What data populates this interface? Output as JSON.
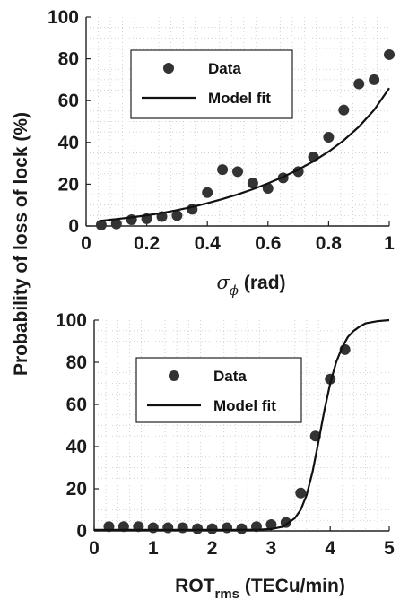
{
  "shared_ylabel": "Probability of loss of lock (%)",
  "colors": {
    "marker": "#333333",
    "line": "#111111",
    "grid": "#c8c8c8",
    "axis": "#222222"
  },
  "chart_data": [
    {
      "type": "scatter",
      "xlabel_symbol": "σ",
      "xlabel_sub": "ϕ",
      "xlabel_unit": " (rad)",
      "xlim": [
        0,
        1
      ],
      "ylim": [
        0,
        100
      ],
      "xticks": [
        "0",
        "0.2",
        "0.4",
        "0.6",
        "0.8",
        "1"
      ],
      "yticks": [
        "0",
        "20",
        "40",
        "60",
        "80",
        "100"
      ],
      "grid": "dotted",
      "legend": {
        "position": "top-left",
        "entries": [
          "Data",
          "Model fit"
        ]
      },
      "series": [
        {
          "name": "Data",
          "kind": "markers",
          "x": [
            0.05,
            0.1,
            0.15,
            0.2,
            0.25,
            0.3,
            0.35,
            0.4,
            0.45,
            0.5,
            0.55,
            0.6,
            0.65,
            0.7,
            0.75,
            0.8,
            0.85,
            0.9,
            0.95,
            1.0
          ],
          "y": [
            0.5,
            1,
            3,
            3.5,
            4.5,
            5,
            8,
            16,
            27,
            26,
            20.5,
            18,
            23,
            26,
            33,
            42.5,
            55.5,
            68,
            70,
            82
          ]
        },
        {
          "name": "Model fit",
          "kind": "line",
          "x": [
            0.05,
            0.1,
            0.15,
            0.2,
            0.25,
            0.3,
            0.35,
            0.4,
            0.45,
            0.5,
            0.55,
            0.6,
            0.65,
            0.7,
            0.75,
            0.8,
            0.85,
            0.9,
            0.95,
            1.0
          ],
          "y": [
            2.5,
            3.3,
            4.1,
            5.1,
            6.2,
            7.6,
            9.1,
            10.9,
            12.9,
            15.1,
            17.6,
            20.4,
            23.5,
            27.0,
            31.0,
            35.6,
            41.0,
            47.5,
            55.5,
            66.0
          ]
        }
      ]
    },
    {
      "type": "scatter",
      "xlabel_main": "ROT",
      "xlabel_sub": "rms",
      "xlabel_unit": " (TECu/min)",
      "xlim": [
        0,
        5
      ],
      "ylim": [
        0,
        100
      ],
      "xticks": [
        "0",
        "1",
        "2",
        "3",
        "4",
        "5"
      ],
      "yticks": [
        "0",
        "20",
        "40",
        "60",
        "80",
        "100"
      ],
      "grid": "dotted",
      "legend": {
        "position": "top-left",
        "entries": [
          "Data",
          "Model fit"
        ]
      },
      "series": [
        {
          "name": "Data",
          "kind": "markers",
          "x": [
            0.25,
            0.5,
            0.75,
            1.0,
            1.25,
            1.5,
            1.75,
            2.0,
            2.25,
            2.5,
            2.75,
            3.0,
            3.25,
            3.5,
            3.75,
            4.0,
            4.25
          ],
          "y": [
            2,
            2,
            2,
            1.5,
            1.5,
            1.5,
            1,
            1,
            1.5,
            1,
            2,
            3,
            4,
            18,
            45,
            72,
            86
          ]
        },
        {
          "name": "Model fit",
          "kind": "line",
          "x": [
            0.0,
            0.5,
            1.0,
            1.5,
            2.0,
            2.5,
            2.8,
            3.0,
            3.2,
            3.4,
            3.5,
            3.6,
            3.7,
            3.8,
            3.9,
            4.0,
            4.1,
            4.2,
            4.3,
            4.4,
            4.5,
            4.6,
            4.8,
            5.0
          ],
          "y": [
            0.5,
            0.5,
            0.5,
            0.5,
            0.5,
            0.5,
            0.6,
            0.9,
            2.0,
            6,
            10,
            17,
            28,
            42,
            57,
            70,
            80,
            87,
            92,
            95,
            97,
            98.5,
            99.5,
            100
          ]
        }
      ]
    }
  ]
}
